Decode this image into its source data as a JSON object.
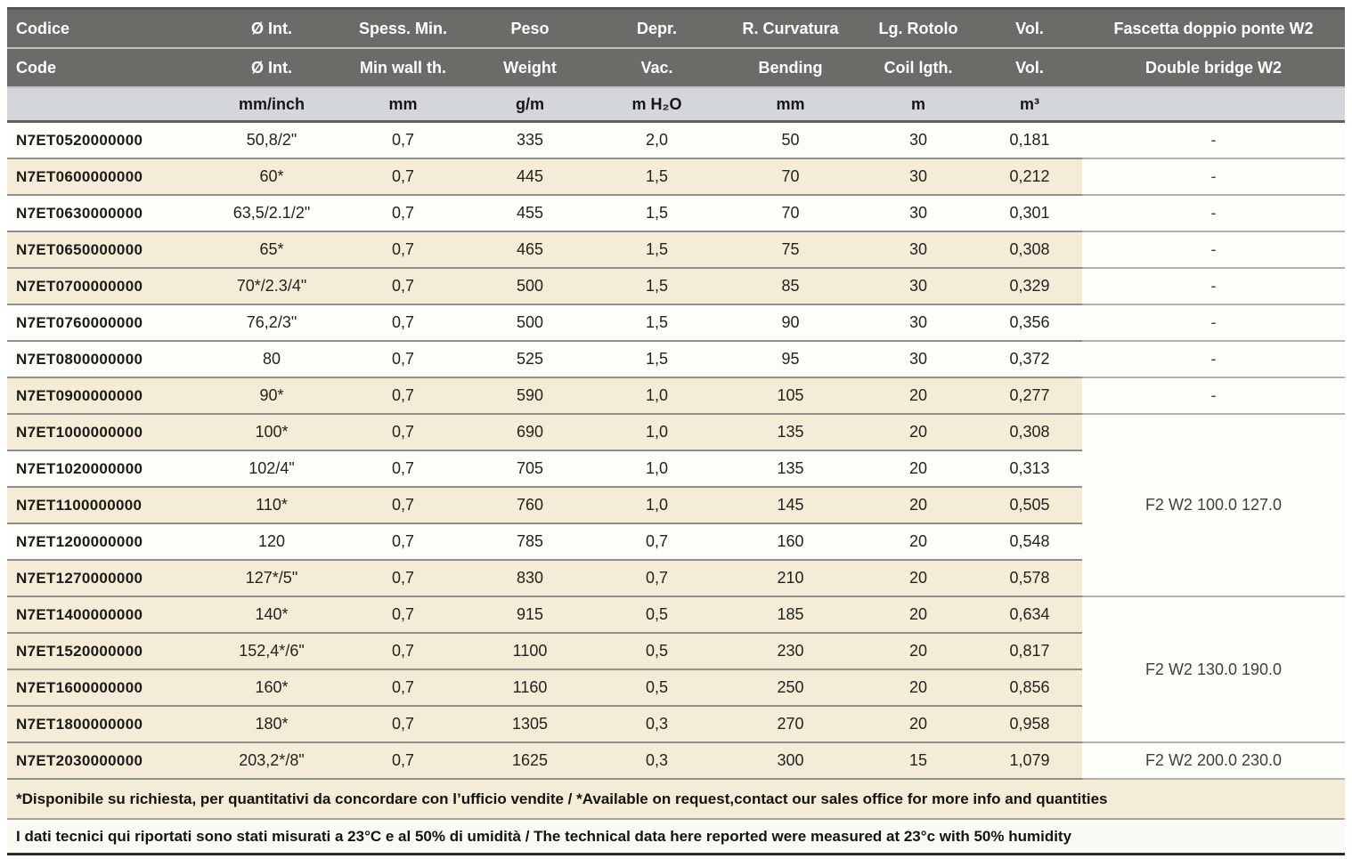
{
  "colors": {
    "header_bg": "#6c6b67",
    "header_text": "#ffffff",
    "unit_row_bg": "#d3d6db",
    "shaded_row_bg": "#f4ecd6",
    "plain_row_bg": "#fdfdfa",
    "row_line": "#8f8e89",
    "dark_line": "#55544f"
  },
  "table": {
    "columns": [
      {
        "key": "code",
        "label_it": "Codice",
        "label_en": "Code",
        "unit": ""
      },
      {
        "key": "diameter",
        "label_it": "Ø Int.",
        "label_en": "Ø Int.",
        "unit": "mm/inch"
      },
      {
        "key": "min_wall",
        "label_it": "Spess. Min.",
        "label_en": "Min wall th.",
        "unit": "mm"
      },
      {
        "key": "weight",
        "label_it": "Peso",
        "label_en": "Weight",
        "unit": "g/m"
      },
      {
        "key": "vacuum",
        "label_it": "Depr.",
        "label_en": "Vac.",
        "unit": "m H₂O"
      },
      {
        "key": "bending",
        "label_it": "R. Curvatura",
        "label_en": "Bending",
        "unit": "mm"
      },
      {
        "key": "coil_length",
        "label_it": "Lg. Rotolo",
        "label_en": "Coil lgth.",
        "unit": "m"
      },
      {
        "key": "volume",
        "label_it": "Vol.",
        "label_en": "Vol.",
        "unit": "m³"
      },
      {
        "key": "bridge",
        "label_it": "Fascetta doppio ponte W2",
        "label_en": "Double bridge W2",
        "unit": ""
      }
    ],
    "rows": [
      {
        "code": "N7ET0520000000",
        "diameter": "50,8/2\"",
        "min_wall": "0,7",
        "weight": "335",
        "vacuum": "2,0",
        "bending": "50",
        "coil_length": "30",
        "volume": "0,181",
        "bridge": "-",
        "shaded": false
      },
      {
        "code": "N7ET0600000000",
        "diameter": "60*",
        "min_wall": "0,7",
        "weight": "445",
        "vacuum": "1,5",
        "bending": "70",
        "coil_length": "30",
        "volume": "0,212",
        "bridge": "-",
        "shaded": true
      },
      {
        "code": "N7ET0630000000",
        "diameter": "63,5/2.1/2\"",
        "min_wall": "0,7",
        "weight": "455",
        "vacuum": "1,5",
        "bending": "70",
        "coil_length": "30",
        "volume": "0,301",
        "bridge": "-",
        "shaded": false
      },
      {
        "code": "N7ET0650000000",
        "diameter": "65*",
        "min_wall": "0,7",
        "weight": "465",
        "vacuum": "1,5",
        "bending": "75",
        "coil_length": "30",
        "volume": "0,308",
        "bridge": "-",
        "shaded": true
      },
      {
        "code": "N7ET0700000000",
        "diameter": "70*/2.3/4\"",
        "min_wall": "0,7",
        "weight": "500",
        "vacuum": "1,5",
        "bending": "85",
        "coil_length": "30",
        "volume": "0,329",
        "bridge": "-",
        "shaded": true
      },
      {
        "code": "N7ET0760000000",
        "diameter": "76,2/3\"",
        "min_wall": "0,7",
        "weight": "500",
        "vacuum": "1,5",
        "bending": "90",
        "coil_length": "30",
        "volume": "0,356",
        "bridge": "-",
        "shaded": false
      },
      {
        "code": "N7ET0800000000",
        "diameter": "80",
        "min_wall": "0,7",
        "weight": "525",
        "vacuum": "1,5",
        "bending": "95",
        "coil_length": "30",
        "volume": "0,372",
        "bridge": "-",
        "shaded": false
      },
      {
        "code": "N7ET0900000000",
        "diameter": "90*",
        "min_wall": "0,7",
        "weight": "590",
        "vacuum": "1,0",
        "bending": "105",
        "coil_length": "20",
        "volume": "0,277",
        "bridge": "-",
        "shaded": true
      },
      {
        "code": "N7ET1000000000",
        "diameter": "100*",
        "min_wall": "0,7",
        "weight": "690",
        "vacuum": "1,0",
        "bending": "135",
        "coil_length": "20",
        "volume": "0,308",
        "bridge": {
          "text": "F2 W2 100.0 127.0",
          "span": 5
        },
        "shaded": true
      },
      {
        "code": "N7ET1020000000",
        "diameter": "102/4\"",
        "min_wall": "0,7",
        "weight": "705",
        "vacuum": "1,0",
        "bending": "135",
        "coil_length": "20",
        "volume": "0,313",
        "bridge": null,
        "shaded": false
      },
      {
        "code": "N7ET1100000000",
        "diameter": "110*",
        "min_wall": "0,7",
        "weight": "760",
        "vacuum": "1,0",
        "bending": "145",
        "coil_length": "20",
        "volume": "0,505",
        "bridge": null,
        "shaded": true
      },
      {
        "code": "N7ET1200000000",
        "diameter": "120",
        "min_wall": "0,7",
        "weight": "785",
        "vacuum": "0,7",
        "bending": "160",
        "coil_length": "20",
        "volume": "0,548",
        "bridge": null,
        "shaded": false
      },
      {
        "code": "N7ET1270000000",
        "diameter": "127*/5\"",
        "min_wall": "0,7",
        "weight": "830",
        "vacuum": "0,7",
        "bending": "210",
        "coil_length": "20",
        "volume": "0,578",
        "bridge": null,
        "shaded": true
      },
      {
        "code": "N7ET1400000000",
        "diameter": "140*",
        "min_wall": "0,7",
        "weight": "915",
        "vacuum": "0,5",
        "bending": "185",
        "coil_length": "20",
        "volume": "0,634",
        "bridge": {
          "text": "F2 W2 130.0 190.0",
          "span": 4
        },
        "shaded": true
      },
      {
        "code": "N7ET1520000000",
        "diameter": "152,4*/6\"",
        "min_wall": "0,7",
        "weight": "1100",
        "vacuum": "0,5",
        "bending": "230",
        "coil_length": "20",
        "volume": "0,817",
        "bridge": null,
        "shaded": true
      },
      {
        "code": "N7ET1600000000",
        "diameter": "160*",
        "min_wall": "0,7",
        "weight": "1160",
        "vacuum": "0,5",
        "bending": "250",
        "coil_length": "20",
        "volume": "0,856",
        "bridge": null,
        "shaded": true
      },
      {
        "code": "N7ET1800000000",
        "diameter": "180*",
        "min_wall": "0,7",
        "weight": "1305",
        "vacuum": "0,3",
        "bending": "270",
        "coil_length": "20",
        "volume": "0,958",
        "bridge": null,
        "shaded": true
      },
      {
        "code": "N7ET2030000000",
        "diameter": "203,2*/8\"",
        "min_wall": "0,7",
        "weight": "1625",
        "vacuum": "0,3",
        "bending": "300",
        "coil_length": "15",
        "volume": "1,079",
        "bridge": "F2 W2 200.0 230.0",
        "shaded": true
      }
    ],
    "notes": [
      "*Disponibile su richiesta, per quantitativi da concordare con l’ufficio vendite / *Available on request,contact our sales office for more info and quantities",
      "I dati tecnici qui riportati sono stati misurati a 23°C e al 50% di umidità / The technical data here reported were measured at 23°c with 50% humidity"
    ]
  }
}
